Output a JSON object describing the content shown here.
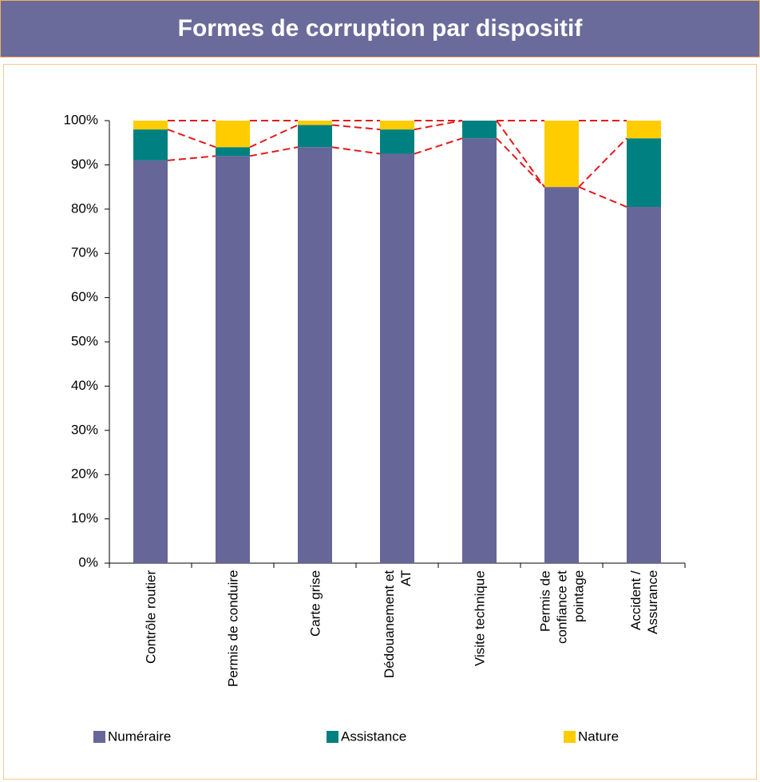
{
  "chart_data": {
    "type": "stacked_bar",
    "title": "Formes de corruption par dispositif",
    "categories": [
      "Contrôle routier",
      "Permis de conduire",
      "Carte grise",
      "Dédouanement et\nAT",
      "Visite technique",
      "Permis de\nconfiance et\npointage",
      "Accident /\nAssurance"
    ],
    "series": [
      {
        "name": "Numéraire",
        "color": "#666699",
        "values": [
          91,
          92,
          94,
          92.5,
          96,
          85,
          80.5
        ]
      },
      {
        "name": "Assistance",
        "color": "#008080",
        "values": [
          7,
          2,
          5,
          5.5,
          4,
          0,
          15.5
        ]
      },
      {
        "name": "Nature",
        "color": "#ffcc00",
        "values": [
          2,
          6,
          1,
          2,
          0,
          15,
          4
        ]
      }
    ],
    "ylim": [
      0,
      100
    ],
    "yticks": [
      {
        "value": 0,
        "label": "0%"
      },
      {
        "value": 10,
        "label": "10%"
      },
      {
        "value": 20,
        "label": "20%"
      },
      {
        "value": 30,
        "label": "30%"
      },
      {
        "value": 40,
        "label": "40%"
      },
      {
        "value": 50,
        "label": "50%"
      },
      {
        "value": 60,
        "label": "60%"
      },
      {
        "value": 70,
        "label": "70%"
      },
      {
        "value": 80,
        "label": "80%"
      },
      {
        "value": 90,
        "label": "90%"
      },
      {
        "value": 100,
        "label": "100%"
      }
    ],
    "series_lines_color": "#e31a1c"
  }
}
